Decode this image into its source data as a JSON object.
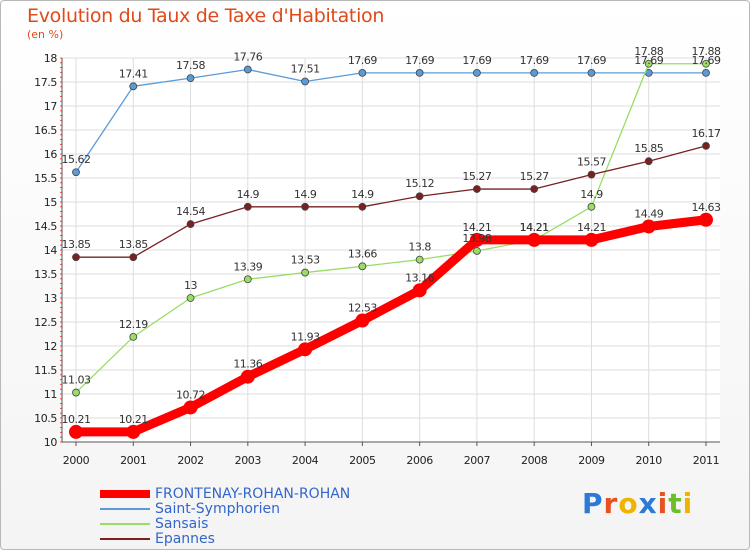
{
  "header": {
    "title": "Evolution du Taux de Taxe d'Habitation",
    "unit": "(en %)"
  },
  "brand": {
    "text": "Proxiti",
    "letter_colors": [
      "#2b7bd6",
      "#e8501f",
      "#f0b400",
      "#2b7bd6",
      "#e8501f",
      "#6cbf2a",
      "#f0b400"
    ]
  },
  "chart_data": {
    "type": "line",
    "x": [
      "2000",
      "2001",
      "2002",
      "2003",
      "2004",
      "2005",
      "2006",
      "2007",
      "2008",
      "2009",
      "2010",
      "2011"
    ],
    "ylim": [
      10,
      18
    ],
    "yticks": [
      "10",
      "10.5",
      "11",
      "11.5",
      "12",
      "12.5",
      "13",
      "13.5",
      "14",
      "14.5",
      "15",
      "15.5",
      "16",
      "16.5",
      "17",
      "17.5",
      "18"
    ],
    "grid": true,
    "legend_position": "bottom-left",
    "series": [
      {
        "name": "FRONTENAY-ROHAN-ROHAN",
        "color": "#ff0000",
        "values": [
          10.21,
          10.21,
          10.72,
          11.36,
          11.93,
          12.53,
          13.16,
          14.21,
          14.21,
          14.21,
          14.49,
          14.63
        ],
        "labels": [
          "10.21",
          "10.21",
          "10.72",
          "11.36",
          "11.93",
          "12.53",
          "13.16",
          "14.21",
          "14.21",
          "14.21",
          "14.49",
          "14.63"
        ]
      },
      {
        "name": "Saint-Symphorien",
        "color": "#5b9bd5",
        "values": [
          15.62,
          17.41,
          17.58,
          17.76,
          17.51,
          17.69,
          17.69,
          17.69,
          17.69,
          17.69,
          17.69,
          17.69
        ],
        "labels": [
          "15.62",
          "17.41",
          "17.58",
          "17.76",
          "17.51",
          "17.69",
          "17.69",
          "17.69",
          "17.69",
          "17.69",
          "17.69",
          "17.69"
        ]
      },
      {
        "name": "Sansais",
        "color": "#99dd66",
        "values": [
          11.03,
          12.19,
          13,
          13.39,
          13.53,
          13.66,
          13.8,
          13.98,
          14.21,
          14.9,
          17.88,
          17.88
        ],
        "labels": [
          "11.03",
          "12.19",
          "13",
          "13.39",
          "13.53",
          "13.66",
          "13.8",
          "13.98",
          "14.21",
          "14.9",
          "17.88",
          "17.88"
        ]
      },
      {
        "name": "Epannes",
        "color": "#7a2020",
        "values": [
          13.85,
          13.85,
          14.54,
          14.9,
          14.9,
          14.9,
          15.12,
          15.27,
          15.27,
          15.57,
          15.85,
          16.17
        ],
        "labels": [
          "13.85",
          "13.85",
          "14.54",
          "14.9",
          "14.9",
          "14.9",
          "15.12",
          "15.27",
          "15.27",
          "15.57",
          "15.85",
          "16.17"
        ]
      }
    ]
  }
}
